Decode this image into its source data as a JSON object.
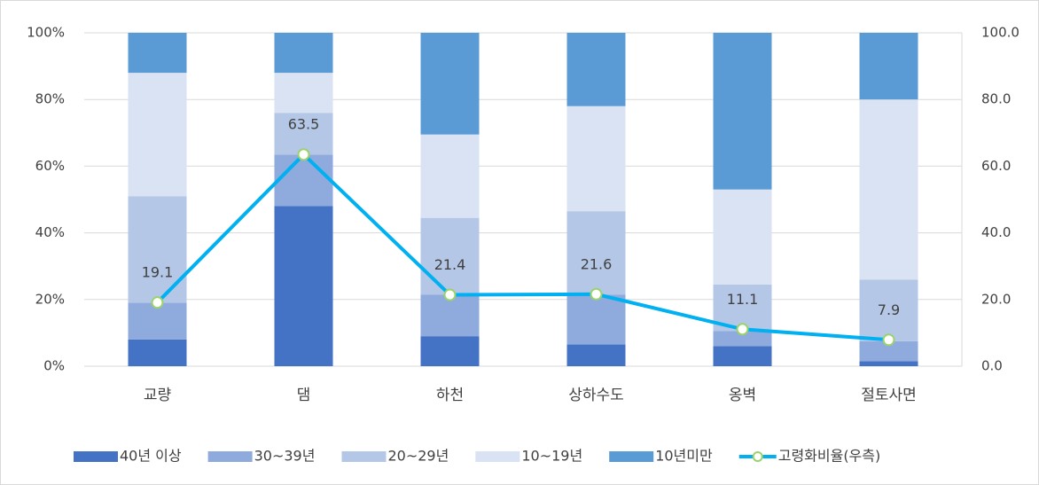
{
  "chart_data": {
    "type": "stacked_bar_line",
    "categories": [
      "교량",
      "댐",
      "하천",
      "상하수도",
      "옹벽",
      "절토사면"
    ],
    "series": [
      {
        "name": "40년 이상",
        "color": "#4472c4",
        "values": [
          8,
          48,
          9,
          6.5,
          6,
          1.5
        ]
      },
      {
        "name": "30~39년",
        "color": "#8faadc",
        "values": [
          11,
          15.5,
          12.5,
          15,
          4.5,
          6
        ]
      },
      {
        "name": "20~29년",
        "color": "#b4c7e7",
        "values": [
          32,
          12.5,
          23,
          25,
          14,
          18.5
        ]
      },
      {
        "name": "10~19년",
        "color": "#dae3f3",
        "values": [
          37,
          12,
          25,
          31.5,
          28.5,
          54
        ]
      },
      {
        "name": "10년미만",
        "color": "#5b9bd5",
        "values": [
          12,
          12,
          30.5,
          22,
          47,
          20
        ]
      },
      {
        "name": "고령화비율(우측)",
        "color": "#00b0f0",
        "marker_color": "#9bd36b",
        "axis": "y2",
        "type": "line",
        "values": [
          19.1,
          63.5,
          21.4,
          21.6,
          11.1,
          7.9
        ]
      }
    ],
    "ylim": [
      0,
      100
    ],
    "yticks": [
      {
        "value": 0,
        "label": "0%"
      },
      {
        "value": 20,
        "label": "20%"
      },
      {
        "value": 40,
        "label": "40%"
      },
      {
        "value": 60,
        "label": "60%"
      },
      {
        "value": 80,
        "label": "80%"
      },
      {
        "value": 100,
        "label": "100%"
      }
    ],
    "y2lim": [
      0,
      100
    ],
    "y2ticks": [
      {
        "value": 0,
        "label": "0.0"
      },
      {
        "value": 20,
        "label": "20.0"
      },
      {
        "value": 40,
        "label": "40.0"
      },
      {
        "value": 60,
        "label": "60.0"
      },
      {
        "value": 80,
        "label": "80.0"
      },
      {
        "value": 100,
        "label": "100.0"
      }
    ],
    "grid": true,
    "legend": "bottom"
  }
}
